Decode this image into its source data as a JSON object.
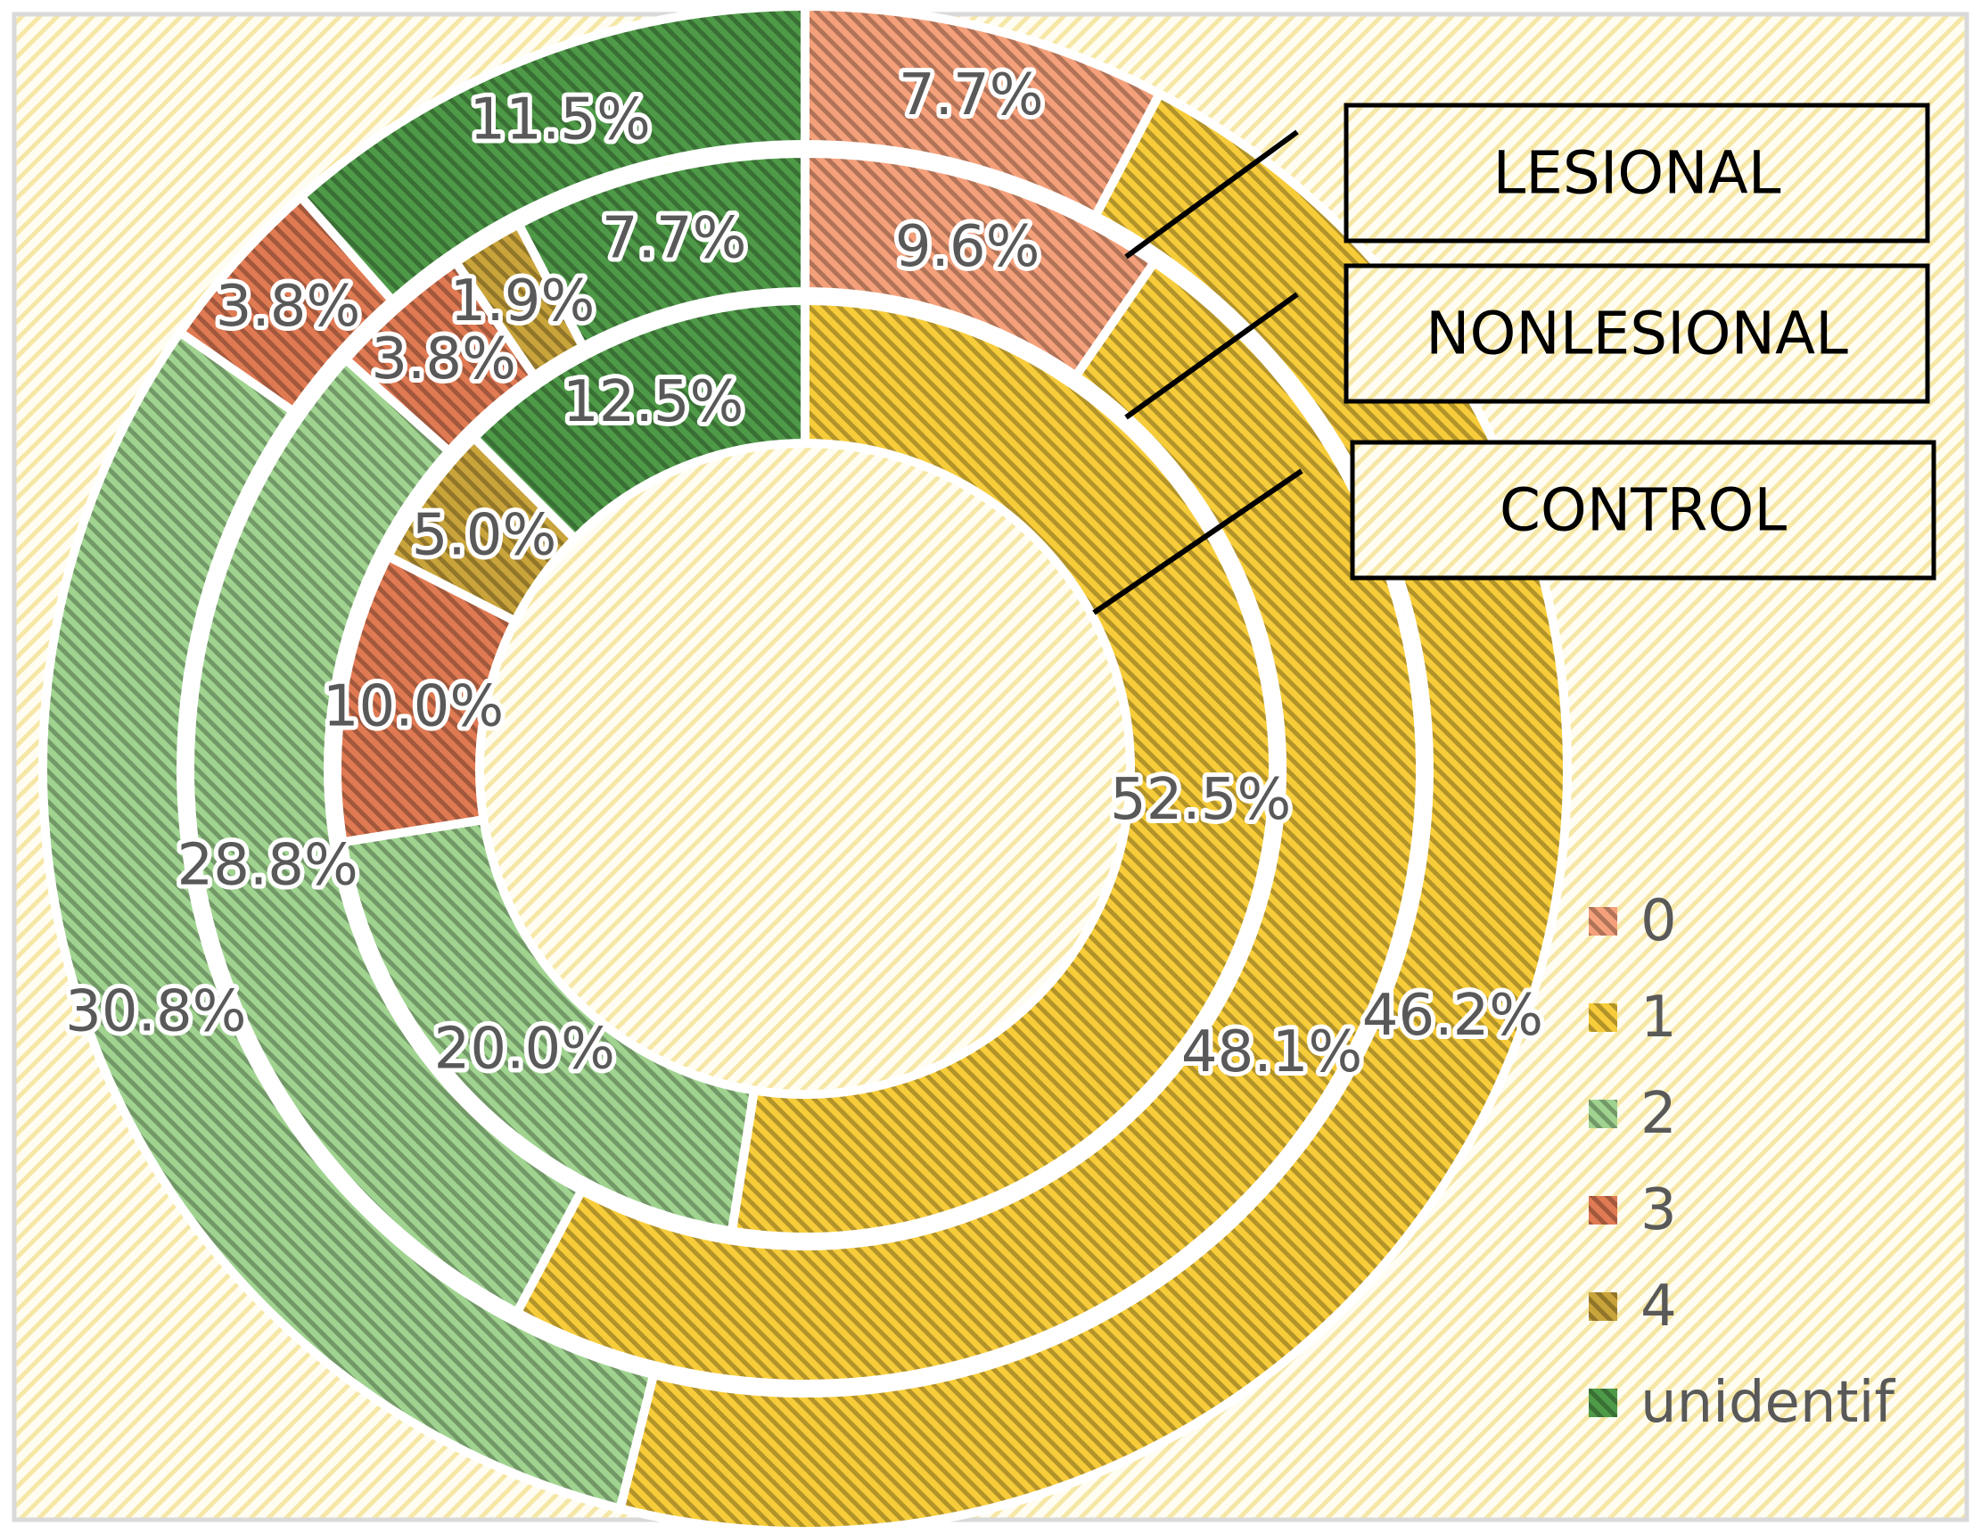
{
  "chart_data": {
    "type": "pie",
    "variant": "multi-level doughnut",
    "categories": [
      "0",
      "1",
      "2",
      "3",
      "4",
      "unidentif"
    ],
    "colors": {
      "0": "#f4a07a",
      "1": "#f7cc3a",
      "2": "#9fd38f",
      "3": "#e07a53",
      "4": "#c9a43b",
      "unidentif": "#4f9a48"
    },
    "rings": [
      {
        "name": "LESIONAL",
        "labels": [
          "7.7%",
          "46.2%",
          "30.8%",
          "3.8%",
          "",
          "11.5%"
        ],
        "values": [
          7.7,
          46.2,
          30.8,
          3.8,
          0.0,
          11.5
        ]
      },
      {
        "name": "NONLESIONAL",
        "labels": [
          "9.6%",
          "48.1%",
          "28.8%",
          "3.8%",
          "1.9%",
          "7.7%"
        ],
        "values": [
          9.6,
          48.1,
          28.8,
          3.8,
          1.9,
          7.7
        ]
      },
      {
        "name": "CONTROL",
        "labels": [
          "",
          "52.5%",
          "20.0%",
          "10.0%",
          "5.0%",
          "12.5%"
        ],
        "values": [
          0.0,
          52.5,
          20.0,
          10.0,
          5.0,
          12.5
        ]
      }
    ],
    "legend": {
      "placement": "bottom-right",
      "entries": [
        "0",
        "1",
        "2",
        "3",
        "4",
        "unidentif"
      ]
    },
    "background": {
      "base": "#fffdf2",
      "stripe": "#f6e7a6",
      "border": "#d9d9d9"
    }
  }
}
